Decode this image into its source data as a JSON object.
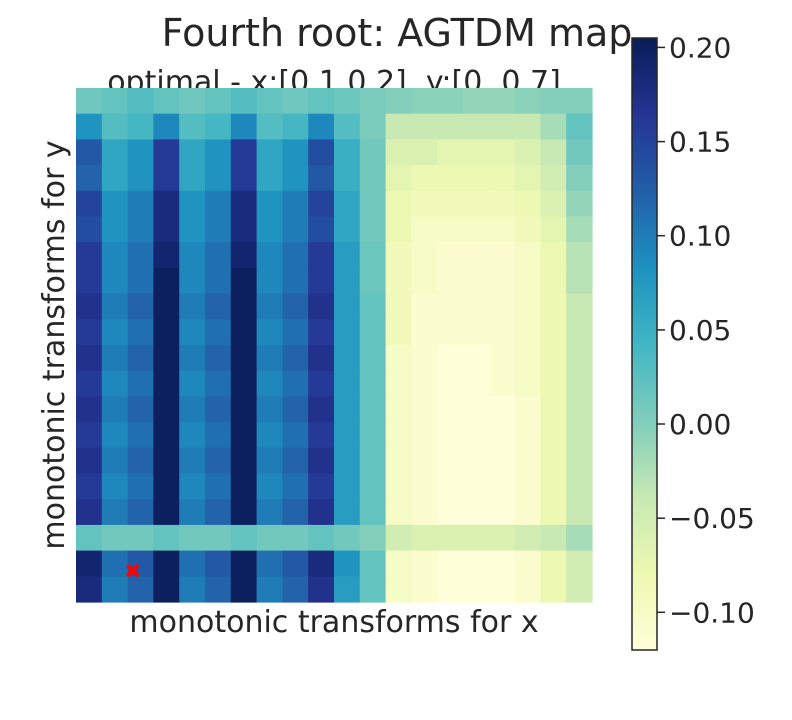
{
  "chart_data": {
    "type": "heatmap",
    "title": "Fourth root: AGTDM map",
    "subtitle": "optimal - x:[0.1 0.2], y:[0.  0.7]",
    "xlabel": "monotonic transforms for x",
    "ylabel": "monotonic transforms for y",
    "colormap": "YlGnBu",
    "value_range": [
      -0.12,
      0.205
    ],
    "colorbar_ticks": [
      "0.20",
      "0.15",
      "0.10",
      "0.05",
      "0.00",
      "−0.05",
      "−0.10"
    ],
    "colorbar_tick_values": [
      0.2,
      0.15,
      0.1,
      0.05,
      0.0,
      -0.05,
      -0.1
    ],
    "grid": false,
    "optimum_marker": {
      "symbol": "✖",
      "color": "#ff0000",
      "x_fraction": 0.11,
      "y_fraction": 0.94
    },
    "rows": 20,
    "cols": 20,
    "values": [
      [
        0.012,
        0.02,
        0.03,
        0.02,
        0.012,
        0.02,
        0.03,
        0.02,
        0.012,
        0.02,
        0.015,
        0.005,
        0.0,
        -0.005,
        -0.005,
        -0.01,
        -0.01,
        -0.005,
        0.0,
        0.0
      ],
      [
        0.08,
        0.03,
        0.04,
        0.09,
        0.03,
        0.04,
        0.09,
        0.03,
        0.04,
        0.09,
        0.03,
        0.005,
        -0.04,
        -0.04,
        -0.04,
        -0.04,
        -0.04,
        -0.04,
        -0.02,
        0.02
      ],
      [
        0.13,
        0.06,
        0.08,
        0.16,
        0.06,
        0.08,
        0.16,
        0.06,
        0.08,
        0.14,
        0.05,
        0.01,
        -0.06,
        -0.06,
        -0.07,
        -0.07,
        -0.07,
        -0.06,
        -0.04,
        0.01
      ],
      [
        0.12,
        0.06,
        0.08,
        0.16,
        0.06,
        0.08,
        0.16,
        0.06,
        0.08,
        0.13,
        0.05,
        0.01,
        -0.07,
        -0.08,
        -0.08,
        -0.08,
        -0.08,
        -0.07,
        -0.05,
        0.0
      ],
      [
        0.15,
        0.08,
        0.1,
        0.18,
        0.08,
        0.1,
        0.18,
        0.08,
        0.1,
        0.15,
        0.06,
        0.01,
        -0.08,
        -0.09,
        -0.09,
        -0.09,
        -0.09,
        -0.08,
        -0.06,
        -0.01
      ],
      [
        0.14,
        0.08,
        0.1,
        0.18,
        0.08,
        0.1,
        0.18,
        0.08,
        0.1,
        0.14,
        0.06,
        0.01,
        -0.08,
        -0.1,
        -0.1,
        -0.1,
        -0.1,
        -0.09,
        -0.07,
        -0.02
      ],
      [
        0.16,
        0.09,
        0.11,
        0.19,
        0.09,
        0.11,
        0.19,
        0.09,
        0.11,
        0.16,
        0.07,
        0.015,
        -0.09,
        -0.1,
        -0.11,
        -0.11,
        -0.11,
        -0.1,
        -0.08,
        -0.03
      ],
      [
        0.16,
        0.09,
        0.11,
        0.2,
        0.09,
        0.11,
        0.2,
        0.09,
        0.11,
        0.16,
        0.07,
        0.015,
        -0.09,
        -0.1,
        -0.11,
        -0.11,
        -0.11,
        -0.1,
        -0.08,
        -0.03
      ],
      [
        0.17,
        0.1,
        0.12,
        0.2,
        0.1,
        0.12,
        0.2,
        0.1,
        0.12,
        0.17,
        0.07,
        0.02,
        -0.09,
        -0.11,
        -0.11,
        -0.11,
        -0.11,
        -0.1,
        -0.08,
        -0.04
      ],
      [
        0.16,
        0.09,
        0.11,
        0.2,
        0.09,
        0.11,
        0.2,
        0.09,
        0.11,
        0.16,
        0.07,
        0.02,
        -0.09,
        -0.11,
        -0.11,
        -0.11,
        -0.11,
        -0.1,
        -0.08,
        -0.04
      ],
      [
        0.17,
        0.1,
        0.12,
        0.2,
        0.1,
        0.12,
        0.2,
        0.1,
        0.12,
        0.17,
        0.07,
        0.02,
        -0.1,
        -0.11,
        -0.12,
        -0.12,
        -0.11,
        -0.1,
        -0.08,
        -0.04
      ],
      [
        0.16,
        0.09,
        0.11,
        0.2,
        0.09,
        0.11,
        0.2,
        0.09,
        0.11,
        0.16,
        0.07,
        0.02,
        -0.1,
        -0.11,
        -0.12,
        -0.12,
        -0.11,
        -0.1,
        -0.08,
        -0.04
      ],
      [
        0.17,
        0.1,
        0.12,
        0.2,
        0.1,
        0.12,
        0.2,
        0.1,
        0.12,
        0.17,
        0.07,
        0.02,
        -0.1,
        -0.11,
        -0.12,
        -0.12,
        -0.12,
        -0.11,
        -0.08,
        -0.04
      ],
      [
        0.16,
        0.09,
        0.11,
        0.2,
        0.09,
        0.11,
        0.2,
        0.09,
        0.11,
        0.16,
        0.07,
        0.02,
        -0.1,
        -0.11,
        -0.12,
        -0.12,
        -0.12,
        -0.11,
        -0.08,
        -0.04
      ],
      [
        0.17,
        0.1,
        0.12,
        0.2,
        0.1,
        0.12,
        0.2,
        0.1,
        0.12,
        0.17,
        0.07,
        0.02,
        -0.1,
        -0.11,
        -0.12,
        -0.12,
        -0.12,
        -0.11,
        -0.08,
        -0.04
      ],
      [
        0.16,
        0.09,
        0.11,
        0.2,
        0.09,
        0.11,
        0.2,
        0.09,
        0.11,
        0.16,
        0.07,
        0.02,
        -0.1,
        -0.11,
        -0.12,
        -0.12,
        -0.12,
        -0.11,
        -0.08,
        -0.04
      ],
      [
        0.17,
        0.1,
        0.12,
        0.2,
        0.1,
        0.12,
        0.2,
        0.1,
        0.12,
        0.17,
        0.07,
        0.02,
        -0.1,
        -0.11,
        -0.12,
        -0.12,
        -0.12,
        -0.11,
        -0.08,
        -0.04
      ],
      [
        0.02,
        0.01,
        0.01,
        0.02,
        0.01,
        0.01,
        0.02,
        0.01,
        0.01,
        0.02,
        0.01,
        0.0,
        -0.05,
        -0.06,
        -0.06,
        -0.06,
        -0.06,
        -0.05,
        -0.04,
        -0.02
      ],
      [
        0.19,
        0.11,
        0.13,
        0.2,
        0.11,
        0.13,
        0.2,
        0.11,
        0.13,
        0.18,
        0.08,
        0.02,
        -0.1,
        -0.11,
        -0.12,
        -0.12,
        -0.12,
        -0.11,
        -0.08,
        -0.05
      ],
      [
        0.18,
        0.1,
        0.12,
        0.2,
        0.1,
        0.12,
        0.2,
        0.1,
        0.12,
        0.17,
        0.07,
        0.02,
        -0.1,
        -0.11,
        -0.12,
        -0.12,
        -0.12,
        -0.11,
        -0.08,
        -0.05
      ]
    ]
  }
}
